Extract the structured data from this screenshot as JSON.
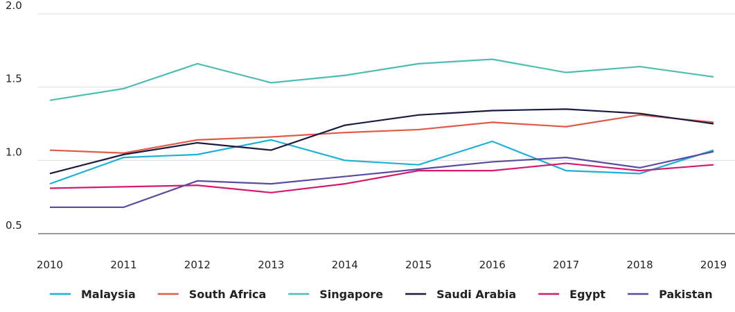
{
  "chart_data": {
    "type": "line",
    "categories": [
      "2010",
      "2011",
      "2012",
      "2013",
      "2014",
      "2015",
      "2016",
      "2017",
      "2018",
      "2019"
    ],
    "series": [
      {
        "name": "Malaysia",
        "color": "#1ab0d8",
        "values": [
          0.84,
          1.02,
          1.04,
          1.14,
          1.0,
          0.97,
          1.13,
          0.93,
          0.91,
          1.07
        ]
      },
      {
        "name": "South Africa",
        "color": "#e05a47",
        "values": [
          1.07,
          1.05,
          1.14,
          1.16,
          1.19,
          1.21,
          1.26,
          1.23,
          1.31,
          1.26
        ]
      },
      {
        "name": "Singapore",
        "color": "#4cbdb2",
        "values": [
          1.41,
          1.49,
          1.66,
          1.53,
          1.58,
          1.66,
          1.69,
          1.6,
          1.64,
          1.57
        ]
      },
      {
        "name": "Saudi Arabia",
        "color": "#1a1a40",
        "values": [
          0.91,
          1.04,
          1.12,
          1.07,
          1.24,
          1.31,
          1.34,
          1.35,
          1.32,
          1.25
        ]
      },
      {
        "name": "Egypt",
        "color": "#d6186e",
        "values": [
          0.81,
          0.82,
          0.83,
          0.78,
          0.84,
          0.93,
          0.93,
          0.98,
          0.93,
          0.97
        ]
      },
      {
        "name": "Pakistan",
        "color": "#5b4aa0",
        "values": [
          0.68,
          0.68,
          0.86,
          0.84,
          0.89,
          0.94,
          0.99,
          1.02,
          0.95,
          1.06
        ]
      }
    ],
    "ylim": [
      0.5,
      2.0
    ],
    "yticks": [
      {
        "value": 0.5,
        "label": "0.5"
      },
      {
        "value": 1,
        "label": "1.0"
      },
      {
        "value": 1.5,
        "label": "1.5"
      },
      {
        "value": 2,
        "label": "2.0"
      }
    ],
    "grid": true,
    "legend": "bottom"
  }
}
